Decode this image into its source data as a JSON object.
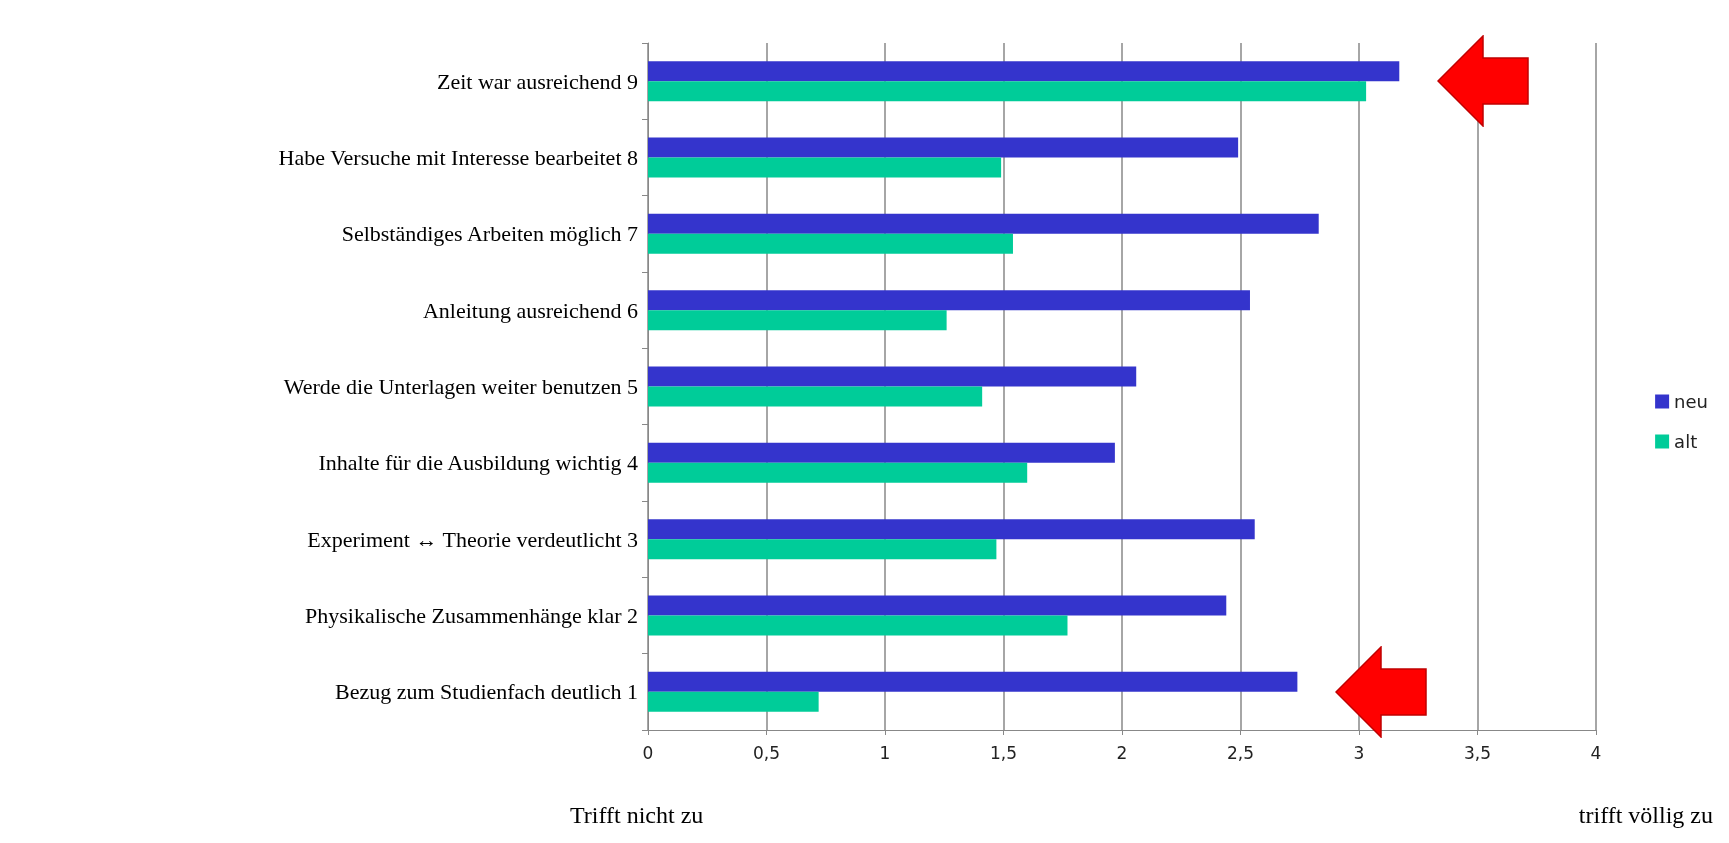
{
  "chart_data": {
    "type": "bar",
    "orientation": "horizontal",
    "categories": [
      "Zeit war ausreichend 9",
      "Habe Versuche mit Interesse bearbeitet 8",
      "Selbständiges Arbeiten möglich 7",
      "Anleitung ausreichend 6",
      "Werde die Unterlagen weiter benutzen 5",
      "Inhalte für die Ausbildung wichtig 4",
      "Experiment ↔ Theorie verdeutlicht 3",
      "Physikalische Zusammenhänge klar 2",
      "Bezug zum Studienfach deutlich 1"
    ],
    "series": [
      {
        "name": "neu",
        "color": "#3434cc",
        "values": [
          3.17,
          2.49,
          2.83,
          2.54,
          2.06,
          1.97,
          2.56,
          2.44,
          2.74
        ]
      },
      {
        "name": "alt",
        "color": "#00cc99",
        "values": [
          3.03,
          1.49,
          1.54,
          1.26,
          1.41,
          1.6,
          1.47,
          1.77,
          0.72
        ]
      }
    ],
    "xlim": [
      0,
      4
    ],
    "xticks": [
      0,
      {
        "value": 0.5,
        "label": "0,5"
      },
      1,
      {
        "value": 1.5,
        "label": "1,5"
      },
      2,
      {
        "value": 2.5,
        "label": "2,5"
      },
      3,
      {
        "value": 3.5,
        "label": "3,5"
      },
      4
    ],
    "grid": "x",
    "legend": "right",
    "annotations": [
      "Trifft nicht zu",
      "trifft völlig zu"
    ]
  }
}
